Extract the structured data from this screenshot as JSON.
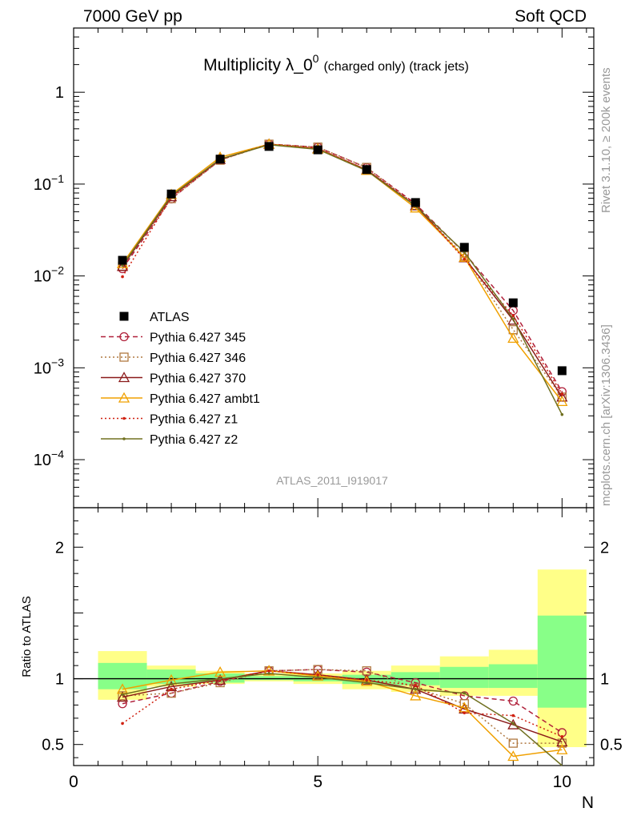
{
  "header": {
    "left": "7000 GeV pp",
    "right": "Soft QCD"
  },
  "side_labels": {
    "rivet": "Rivet 3.1.10, ≥ 200k events",
    "mcplots": "mcplots.cern.ch [arXiv:1306.3436]"
  },
  "chart_data": [
    {
      "type": "line",
      "panel": "main",
      "title_main": "Multiplicity λ_0",
      "title_sup": "0",
      "title_suffix": "(charged only) (track jets)",
      "xlabel": "N",
      "ylabel": "",
      "yscale": "log",
      "xlim": [
        0,
        10.65
      ],
      "ylim": [
        3e-05,
        5
      ],
      "x_ticks": [
        "0",
        "5",
        "10"
      ],
      "y_ticks": [
        "10^-4",
        "10^-3",
        "10^-2",
        "10^-1",
        "1"
      ],
      "legend_position": "middle-left",
      "watermark": "ATLAS_2011_I919017",
      "x": [
        1,
        2,
        3,
        4,
        5,
        6,
        7,
        8,
        9,
        10
      ],
      "series": [
        {
          "name": "ATLAS",
          "color": "#000000",
          "style": "data",
          "values": [
            0.0148,
            0.078,
            0.187,
            0.257,
            0.236,
            0.144,
            0.063,
            0.0205,
            0.0051,
            0.00093
          ]
        },
        {
          "name": "Pythia 6.427 345",
          "color": "#b0203a",
          "style": "dashed",
          "marker": "circle",
          "values": [
            0.012,
            0.069,
            0.183,
            0.273,
            0.252,
            0.151,
            0.061,
            0.0178,
            0.0042,
            0.00055
          ]
        },
        {
          "name": "Pythia 6.427 346",
          "color": "#b07840",
          "style": "dotted",
          "marker": "square",
          "values": [
            0.0128,
            0.0695,
            0.182,
            0.272,
            0.253,
            0.152,
            0.0585,
            0.0165,
            0.0026,
            0.00048
          ]
        },
        {
          "name": "Pythia 6.427 370",
          "color": "#8b1a1a",
          "style": "solid",
          "marker": "triangle",
          "values": [
            0.0127,
            0.073,
            0.186,
            0.272,
            0.243,
            0.143,
            0.058,
            0.0158,
            0.0033,
            0.00048
          ]
        },
        {
          "name": "Pythia 6.427 ambt1",
          "color": "#f0a000",
          "style": "solid",
          "marker": "triangle",
          "values": [
            0.0136,
            0.077,
            0.196,
            0.272,
            0.241,
            0.141,
            0.055,
            0.016,
            0.0021,
            0.00043
          ]
        },
        {
          "name": "Pythia 6.427 z1",
          "color": "#d02010",
          "style": "dotted",
          "marker": "dot",
          "values": [
            0.0098,
            0.072,
            0.186,
            0.272,
            0.244,
            0.143,
            0.06,
            0.0152,
            0.0037,
            0.00052
          ]
        },
        {
          "name": "Pythia 6.427 z2",
          "color": "#707020",
          "style": "solid",
          "marker": "dot",
          "values": [
            0.013,
            0.075,
            0.187,
            0.268,
            0.239,
            0.14,
            0.058,
            0.0182,
            0.0034,
            0.00031
          ]
        }
      ]
    },
    {
      "type": "line",
      "panel": "ratio",
      "title": "",
      "xlabel": "N",
      "ylabel": "Ratio to ATLAS",
      "xlim": [
        0,
        10.65
      ],
      "ylim": [
        0.34,
        2.3
      ],
      "x_ticks": [
        "0",
        "5",
        "10"
      ],
      "y_ticks": [
        "0.5",
        "1",
        "2"
      ],
      "x": [
        1,
        2,
        3,
        4,
        5,
        6,
        7,
        8,
        9,
        10
      ],
      "bands": {
        "bins": [
          [
            0.5,
            1.5
          ],
          [
            1.5,
            2.5
          ],
          [
            2.5,
            3.5
          ],
          [
            3.5,
            4.5
          ],
          [
            4.5,
            5.5
          ],
          [
            5.5,
            6.5
          ],
          [
            6.5,
            7.5
          ],
          [
            7.5,
            8.5
          ],
          [
            8.5,
            9.5
          ],
          [
            9.5,
            10.5
          ]
        ],
        "yellow": [
          [
            0.84,
            1.21
          ],
          [
            0.94,
            1.1
          ],
          [
            0.96,
            1.06
          ],
          [
            0.98,
            1.04
          ],
          [
            0.96,
            1.04
          ],
          [
            0.92,
            1.06
          ],
          [
            0.9,
            1.1
          ],
          [
            0.87,
            1.17
          ],
          [
            0.87,
            1.22
          ],
          [
            0.48,
            1.83
          ]
        ],
        "green": [
          [
            0.92,
            1.12
          ],
          [
            0.96,
            1.07
          ],
          [
            0.97,
            1.04
          ],
          [
            0.99,
            1.02
          ],
          [
            0.98,
            1.02
          ],
          [
            0.96,
            1.03
          ],
          [
            0.95,
            1.05
          ],
          [
            0.93,
            1.09
          ],
          [
            0.93,
            1.11
          ],
          [
            0.78,
            1.48
          ]
        ],
        "yellow_color": "#ffff88",
        "green_color": "#88ff88"
      },
      "series": [
        {
          "name": "Pythia 6.427 345",
          "color": "#b0203a",
          "values": [
            0.81,
            0.89,
            0.98,
            1.06,
            1.07,
            1.05,
            0.97,
            0.87,
            0.83,
            0.59
          ]
        },
        {
          "name": "Pythia 6.427 346",
          "color": "#b07840",
          "values": [
            0.87,
            0.89,
            0.97,
            1.06,
            1.07,
            1.06,
            0.93,
            0.81,
            0.51,
            0.51
          ]
        },
        {
          "name": "Pythia 6.427 370",
          "color": "#8b1a1a",
          "values": [
            0.86,
            0.94,
            0.99,
            1.06,
            1.03,
            0.99,
            0.92,
            0.77,
            0.65,
            0.52
          ]
        },
        {
          "name": "Pythia 6.427 ambt1",
          "color": "#f0a000",
          "values": [
            0.92,
            0.99,
            1.05,
            1.06,
            1.02,
            0.98,
            0.87,
            0.78,
            0.41,
            0.46
          ]
        },
        {
          "name": "Pythia 6.427 z1",
          "color": "#d02010",
          "values": [
            0.66,
            0.92,
            0.99,
            1.06,
            1.03,
            0.99,
            0.95,
            0.74,
            0.72,
            0.56
          ]
        },
        {
          "name": "Pythia 6.427 z2",
          "color": "#707020",
          "values": [
            0.88,
            0.96,
            1.0,
            1.04,
            1.01,
            0.97,
            0.92,
            0.89,
            0.66,
            0.33
          ]
        }
      ]
    }
  ]
}
